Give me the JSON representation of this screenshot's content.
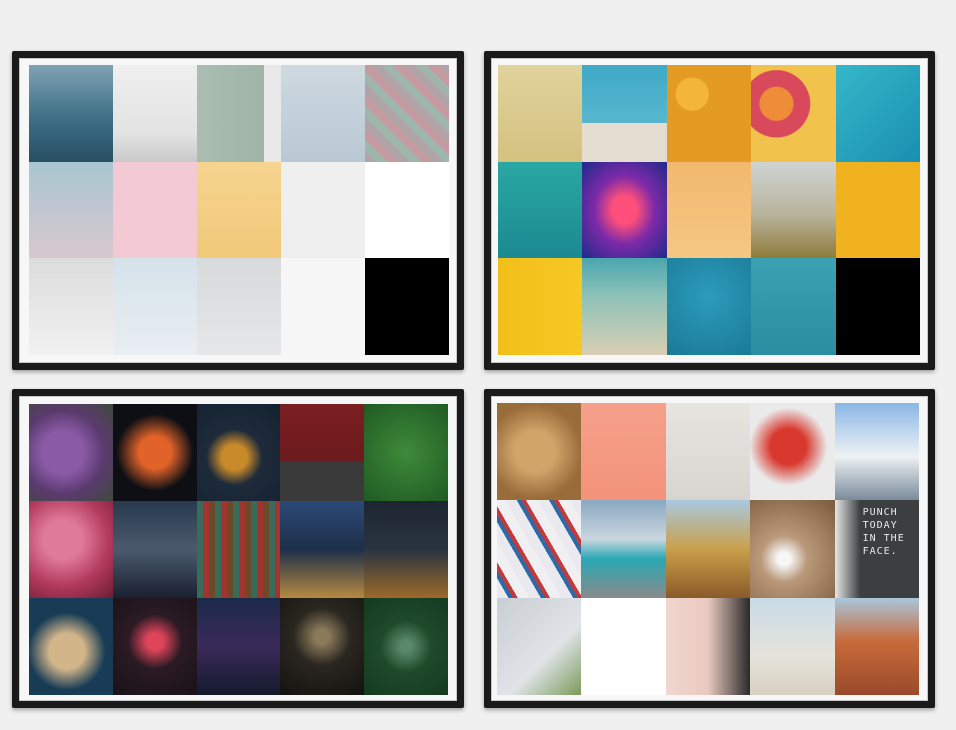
{
  "boards": [
    {
      "tiles": [
        {
          "name": "sea-sparkler-tile",
          "bg": "linear-gradient(180deg,#7fa3b3 0%,#3d6f86 55%,#274f63 100%)"
        },
        {
          "name": "white-room-plant-tile",
          "bg": "linear-gradient(180deg,#efefef 0%,#e3e3e3 70%,#c9c9c9 100%)"
        },
        {
          "name": "sage-wall-lamp-tile",
          "bg": "linear-gradient(90deg,#a9bdb0 0%,#9fb5a7 80%,#e8e8e8 80%)"
        },
        {
          "name": "colored-pins-hand-tile",
          "bg": "linear-gradient(180deg,#cfd9e0 0%,#b8c8d3 100%)"
        },
        {
          "name": "pastel-scales-tile",
          "bg": "repeating-linear-gradient(45deg,#b0a4a8 0 8px,#9eb7ad 8px 16px,#c39ba0 16px 24px)"
        },
        {
          "name": "blossom-branches-tile",
          "bg": "linear-gradient(180deg,#a9c6d0 0%,#d8c7cf 100%)"
        },
        {
          "name": "pink-lips-paper-tile",
          "bg": "#f3c9d3"
        },
        {
          "name": "yellow-bust-plant-tile",
          "bg": "linear-gradient(180deg,#f6d48f 0%,#f1c978 100%)"
        },
        {
          "name": "leaf-vase-tile",
          "bg": "#efefef"
        },
        {
          "name": "balloon-hand-tile",
          "bg": "#ffffff"
        },
        {
          "name": "running-dog-snow-tile",
          "bg": "linear-gradient(180deg,#dcdcdc 0%,#f1f1f1 100%)"
        },
        {
          "name": "paraglider-sky-tile",
          "bg": "linear-gradient(180deg,#d5e2ea 0%,#e9eef2 100%)"
        },
        {
          "name": "wall-clock-plant-tile",
          "bg": "linear-gradient(180deg,#d7d9db 0%,#e6e7e8 100%)"
        },
        {
          "name": "eucalyptus-branch-tile",
          "bg": "#f6f6f6"
        },
        {
          "name": "black-tile",
          "bg": "#000000"
        }
      ]
    },
    {
      "tiles": [
        {
          "name": "kingfisher-tile",
          "bg": "linear-gradient(180deg,#e0d39c 0%,#d3c17f 100%)"
        },
        {
          "name": "beach-friends-tile",
          "bg": "linear-gradient(180deg,#3fa9c6 0%,#58b7cf 60%,#e4ddd0 60%)"
        },
        {
          "name": "yellow-balls-tile",
          "bg": "radial-gradient(circle at 30% 30%,#f4b63a 0 18%,#e39b23 19% 100%)"
        },
        {
          "name": "citrus-slices-tile",
          "bg": "radial-gradient(circle at 30% 40%,#ef8c3a 0 20%,#d84a5b 21% 40%,#f1c24c 41% 100%)"
        },
        {
          "name": "turquoise-island-tile",
          "bg": "linear-gradient(135deg,#35b7c9 0%,#1a8fb0 100%)"
        },
        {
          "name": "flamingo-float-tile",
          "bg": "linear-gradient(180deg,#2aa7a3 0%,#1b8a91 100%)"
        },
        {
          "name": "neon-corridor-tile",
          "bg": "radial-gradient(ellipse at 50% 50%,#ff4f7a 0 20%,#7d2aa8 50%,#1e2a8a 100%)"
        },
        {
          "name": "liquor-bottle-tile",
          "bg": "linear-gradient(180deg,#f2b86f 0%,#f4c783 100%)"
        },
        {
          "name": "motorcycle-road-tile",
          "bg": "linear-gradient(180deg,#cfd5d4 0%,#b8b39b 55%,#8e7c3b 100%)"
        },
        {
          "name": "pug-yellow-tile",
          "bg": "#f1b220"
        },
        {
          "name": "yellow-wall-person-tile",
          "bg": "linear-gradient(90deg,#f2bf1a 0%,#f6c824 100%)"
        },
        {
          "name": "aerial-beach-tile",
          "bg": "linear-gradient(180deg,#4aa6b0 0%,#8fc2b7 40%,#d9cfb4 100%)"
        },
        {
          "name": "confetti-teal-tile",
          "bg": "radial-gradient(circle at 50% 40%,#2c9bbb 0%,#1a7a97 100%)"
        },
        {
          "name": "hot-air-balloons-tile",
          "bg": "linear-gradient(180deg,#3aa2b2 0%,#2b8ea0 100%)"
        },
        {
          "name": "black-tile",
          "bg": "#000000"
        }
      ]
    },
    {
      "tiles": [
        {
          "name": "lilac-flowers-tile",
          "bg": "radial-gradient(circle at 40% 50%,#8a5aa6 0 30%,#5a3a6e 60%,#3e4a3a 100%)"
        },
        {
          "name": "betta-fish-tile",
          "bg": "radial-gradient(circle at 50% 50%,#e2632a 0 25%,#0d0f14 60%)"
        },
        {
          "name": "food-flatlay-dark-tile",
          "bg": "radial-gradient(circle at 45% 55%,#c98a2a 0 18%,#1c2a3a 40%,#142230 100%)"
        },
        {
          "name": "woman-red-wall-tile",
          "bg": "linear-gradient(180deg,#7a1e22 0%,#6c1b1e 60%,#3a3a3a 60%)"
        },
        {
          "name": "green-leaves-tile",
          "bg": "radial-gradient(circle at 50% 50%,#3e8a3a 0%,#1f5a23 100%)"
        },
        {
          "name": "pink-flowers-tile",
          "bg": "radial-gradient(circle at 40% 40%,#e07a99 0 25%,#b23a5c 60%,#6b1d33 100%)"
        },
        {
          "name": "city-street-night-tile",
          "bg": "linear-gradient(180deg,#2a3a4e 0%,#4a5a6c 50%,#1a2030 100%)"
        },
        {
          "name": "street-art-tile",
          "bg": "repeating-linear-gradient(90deg,#3a6a5a 0 6px,#a3332e 6px 12px,#6b4a2a 12px 18px)"
        },
        {
          "name": "city-lights-blue-tile",
          "bg": "linear-gradient(180deg,#2c4a78 0%,#1e2f4a 50%,#b58a40 100%)"
        },
        {
          "name": "city-skyline-night-tile",
          "bg": "linear-gradient(180deg,#1c2530 0%,#2a3440 50%,#9c6a2a 100%)"
        },
        {
          "name": "charcuterie-board-tile",
          "bg": "radial-gradient(circle at 45% 55%,#d3b58a 0 25%,#183c55 55%)"
        },
        {
          "name": "neon-sign-tile",
          "bg": "radial-gradient(circle at 50% 45%,#e0445a 0 12%,#2a1a24 40%,#1a1218 100%)"
        },
        {
          "name": "neon-alley-tile",
          "bg": "linear-gradient(180deg,#1b2a4a 0%,#3a2a5a 50%,#141a2c 100%)"
        },
        {
          "name": "dark-tunnel-tile",
          "bg": "radial-gradient(circle at 50% 40%,#8a7a5a 0 10%,#2a2620 40%,#14120f 100%)"
        },
        {
          "name": "forest-waterfall-tile",
          "bg": "radial-gradient(circle at 50% 50%,#5a8a6a 0 8%,#1f4a2a 40%,#143a20 100%)"
        }
      ]
    },
    {
      "tiles": [
        {
          "name": "lion-tile",
          "bg": "radial-gradient(circle at 45% 50%,#d1a46a 0 30%,#9a6c3a 70%)"
        },
        {
          "name": "palm-leaf-coral-tile",
          "bg": "linear-gradient(180deg,#f5a08a 0%,#f4937b 100%)"
        },
        {
          "name": "ledge-books-tile",
          "bg": "linear-gradient(180deg,#e8e4e0 0%,#d8d4d0 100%)"
        },
        {
          "name": "red-poppies-tile",
          "bg": "radial-gradient(circle at 45% 45%,#d8382e 0 25%,#eaeaea 55%)"
        },
        {
          "name": "santorini-street-tile",
          "bg": "linear-gradient(180deg,#8ab7e6 0%,#eef2f4 55%,#7a8a9a 100%)"
        },
        {
          "name": "umbrellas-pattern-tile",
          "bg": "repeating-linear-gradient(60deg,#e9e9ef 0 10px,#2c6aa8 10px 14px,#c43a3a 14px 18px,#f0f0f2 18px 28px)"
        },
        {
          "name": "mountain-lake-tile",
          "bg": "linear-gradient(180deg,#8aa8c2 0%,#c9d6df 40%,#2aa8b4 60%,#8a8a8a 100%)"
        },
        {
          "name": "coconut-truck-tile",
          "bg": "linear-gradient(180deg,#a9c8e0 0%,#c9a04a 50%,#8a5a2a 100%)"
        },
        {
          "name": "coffee-mug-table-tile",
          "bg": "radial-gradient(circle at 40% 60%,#f6f6f6 0 8%,#b9997a 30%,#7a5a3a 100%)"
        },
        {
          "name": "motivational-board-tile",
          "bg": "linear-gradient(90deg,#e6e6e6 0%,#3b3f41 30%,#3b3f41 100%)"
        },
        {
          "name": "map-camera-plant-tile",
          "bg": "linear-gradient(135deg,#c9ced3 0%,#e0e4e8 60%,#7a9a5a 100%)"
        },
        {
          "name": "plant-white-tile",
          "bg": "#ffffff"
        },
        {
          "name": "holding-hands-tile",
          "bg": "linear-gradient(90deg,#f1d7d0 0%,#e9c9bf 50%,#2a2a2a 100%)"
        },
        {
          "name": "puppy-beach-tile",
          "bg": "linear-gradient(180deg,#c9dbe6 0%,#e6e3dc 60%,#d8d0c0 100%)"
        },
        {
          "name": "red-rocks-van-tile",
          "bg": "linear-gradient(180deg,#a9c6dc 0%,#c86a3a 45%,#9a4a2a 100%)"
        }
      ]
    }
  ],
  "motivational_board": {
    "lines": [
      "PUNCH",
      "TODAY",
      "IN THE",
      "FACE."
    ]
  }
}
